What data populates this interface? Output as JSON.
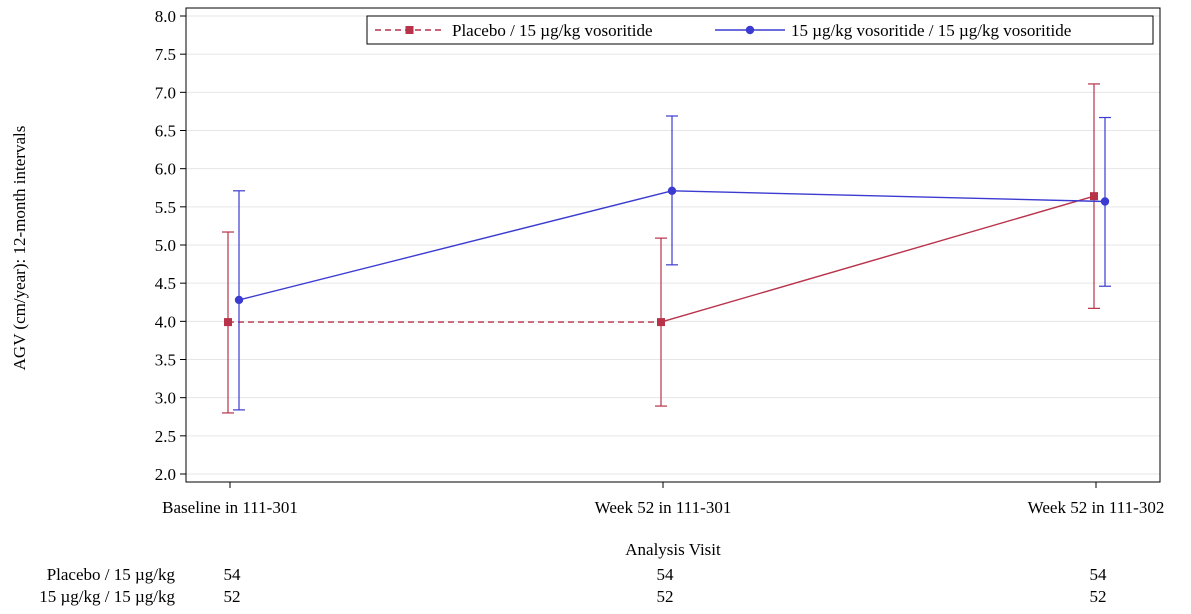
{
  "chart_data": {
    "type": "line",
    "categories": [
      "Baseline in 111-301",
      "Week 52 in 111-301",
      "Week 52 in 111-302"
    ],
    "xlabel": "Analysis Visit",
    "ylabel": "AGV (cm/year): 12-month intervals",
    "ylim": [
      2.0,
      8.0
    ],
    "yticks": [
      "2.0",
      "2.5",
      "3.0",
      "3.5",
      "4.0",
      "4.5",
      "5.0",
      "5.5",
      "6.0",
      "6.5",
      "7.0",
      "7.5",
      "8.0"
    ],
    "grid": true,
    "legend_position": "top-right",
    "series": [
      {
        "name": "Placebo / 15 µg/kg vosoritide",
        "color": "#b8324a",
        "marker": "square",
        "values": [
          3.99,
          3.99,
          5.64
        ],
        "lower": [
          2.8,
          2.89,
          4.17
        ],
        "upper": [
          5.17,
          5.09,
          7.11
        ],
        "segment_styles": [
          "dashed",
          "solid"
        ]
      },
      {
        "name": "15 µg/kg vosoritide / 15 µg/kg vosoritide",
        "color": "#3b3bd1",
        "marker": "circle",
        "values": [
          4.28,
          5.71,
          5.57
        ],
        "lower": [
          2.84,
          4.74,
          4.46
        ],
        "upper": [
          5.71,
          6.69,
          6.67
        ],
        "segment_styles": [
          "solid",
          "solid"
        ]
      }
    ],
    "at_risk_table": {
      "rows": [
        {
          "label": "Placebo / 15 µg/kg",
          "counts": [
            "54",
            "54",
            "54"
          ]
        },
        {
          "label": "15 µg/kg / 15 µg/kg",
          "counts": [
            "52",
            "52",
            "52"
          ]
        }
      ]
    }
  }
}
